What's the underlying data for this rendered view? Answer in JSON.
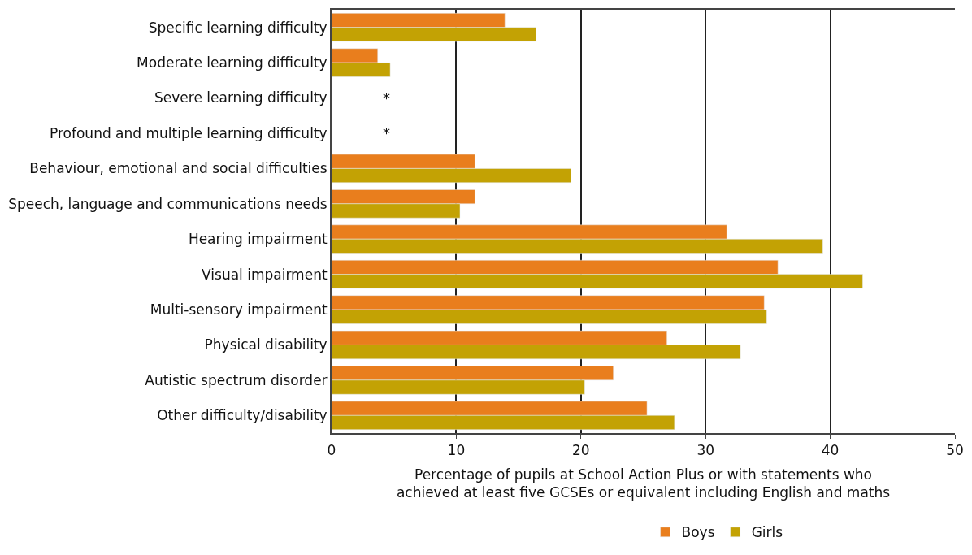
{
  "chart_data": {
    "type": "bar",
    "orientation": "horizontal",
    "categories": [
      "Specific learning difficulty",
      "Moderate learning difficulty",
      "Severe learning difficulty",
      "Profound and multiple learning difficulty",
      "Behaviour, emotional and social difficulties",
      "Speech, language and communications needs",
      "Hearing impairment",
      "Visual impairment",
      "Multi-sensory impairment",
      "Physical disability",
      "Autistic spectrum disorder",
      "Other difficulty/disability"
    ],
    "series": [
      {
        "name": "Boys",
        "color": "#e97e1d",
        "values": [
          13.9,
          3.7,
          null,
          null,
          11.5,
          11.5,
          31.7,
          35.8,
          34.7,
          26.9,
          22.6,
          25.3
        ]
      },
      {
        "name": "Girls",
        "color": "#c3a204",
        "values": [
          16.4,
          4.7,
          null,
          null,
          19.2,
          10.3,
          39.4,
          42.6,
          34.9,
          32.8,
          20.3,
          27.5
        ]
      }
    ],
    "xlabel": "Percentage of pupils at School Action Plus or with statements who\nachieved at least five GCSEs or equivalent including English and maths",
    "xlim": [
      0,
      50
    ],
    "xticks": [
      0,
      10,
      20,
      30,
      40,
      50
    ],
    "annotations": [
      "*",
      "*"
    ],
    "grid": "x",
    "legend": "bottom"
  }
}
